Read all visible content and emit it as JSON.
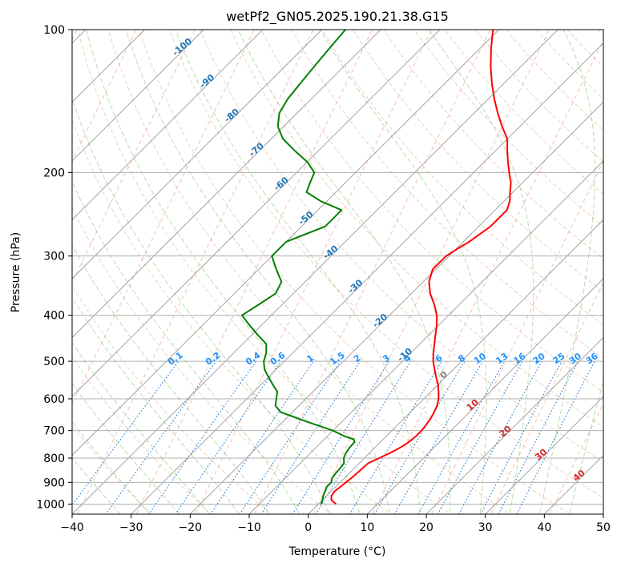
{
  "chart_data": {
    "type": "line",
    "subtype": "skew-t log-p",
    "title": "wetPf2_GN05.2025.190.21.38.G15",
    "xlabel": "Temperature (°C)",
    "ylabel": "Pressure (hPa)",
    "xlim": [
      -40,
      50
    ],
    "ylim": [
      1050,
      100
    ],
    "y_scale": "log",
    "grid": true,
    "x_ticks": [
      -40,
      -30,
      -20,
      -10,
      0,
      10,
      20,
      30,
      40,
      50
    ],
    "y_ticks": [
      1000,
      900,
      800,
      700,
      600,
      500,
      400,
      300,
      200,
      100
    ],
    "isotherm_labels": {
      "values": [
        -100,
        -90,
        -80,
        -70,
        -60,
        -50,
        -40,
        -30,
        -20,
        -10,
        0,
        10,
        20,
        30,
        40
      ],
      "colors": {
        "negative": "#1f77b4",
        "zero": "#808080",
        "positive": "#d62728"
      }
    },
    "mixing_ratio_labels": [
      "0.1",
      "0.2",
      "0.4",
      "0.6",
      "1",
      "1.5",
      "2",
      "3",
      "4",
      "6",
      "8",
      "10",
      "13",
      "16",
      "20",
      "25",
      "30",
      "36"
    ],
    "series": [
      {
        "color": "#ff0000",
        "points": [
          [
            1000,
            3
          ],
          [
            980,
            1.5
          ],
          [
            960,
            0.8
          ],
          [
            940,
            0.6
          ],
          [
            920,
            0.8
          ],
          [
            900,
            1
          ],
          [
            880,
            1.2
          ],
          [
            860,
            1.3
          ],
          [
            840,
            1.4
          ],
          [
            820,
            1.5
          ],
          [
            800,
            2.5
          ],
          [
            780,
            3.5
          ],
          [
            760,
            4.3
          ],
          [
            740,
            4.8
          ],
          [
            720,
            5
          ],
          [
            700,
            5
          ],
          [
            680,
            4.8
          ],
          [
            660,
            4.5
          ],
          [
            640,
            4
          ],
          [
            620,
            3.4
          ],
          [
            600,
            2.5
          ],
          [
            580,
            1.3
          ],
          [
            560,
            0
          ],
          [
            540,
            -1.6
          ],
          [
            520,
            -3.2
          ],
          [
            500,
            -4.8
          ],
          [
            480,
            -6.2
          ],
          [
            460,
            -7.5
          ],
          [
            440,
            -8.9
          ],
          [
            420,
            -10.3
          ],
          [
            400,
            -12
          ],
          [
            380,
            -14.2
          ],
          [
            360,
            -16.8
          ],
          [
            340,
            -19
          ],
          [
            320,
            -20.5
          ],
          [
            300,
            -20.5
          ],
          [
            290,
            -19.8
          ],
          [
            280,
            -19
          ],
          [
            260,
            -18
          ],
          [
            240,
            -18
          ],
          [
            230,
            -19
          ],
          [
            220,
            -20.5
          ],
          [
            210,
            -22
          ],
          [
            200,
            -24
          ],
          [
            190,
            -26
          ],
          [
            180,
            -28
          ],
          [
            170,
            -30
          ],
          [
            160,
            -33
          ],
          [
            150,
            -36
          ],
          [
            140,
            -39
          ],
          [
            130,
            -42
          ],
          [
            120,
            -45
          ],
          [
            110,
            -48
          ],
          [
            100,
            -51
          ]
        ]
      },
      {
        "color": "#008000",
        "points": [
          [
            1000,
            0.5
          ],
          [
            980,
            0
          ],
          [
            960,
            -0.6
          ],
          [
            940,
            -1
          ],
          [
            920,
            -1.5
          ],
          [
            900,
            -1.5
          ],
          [
            880,
            -2.1
          ],
          [
            860,
            -2.3
          ],
          [
            840,
            -2.4
          ],
          [
            820,
            -2.6
          ],
          [
            800,
            -3.5
          ],
          [
            780,
            -4
          ],
          [
            760,
            -4.3
          ],
          [
            740,
            -4.4
          ],
          [
            730,
            -5
          ],
          [
            720,
            -7
          ],
          [
            700,
            -10
          ],
          [
            680,
            -14
          ],
          [
            660,
            -18
          ],
          [
            640,
            -22
          ],
          [
            620,
            -24
          ],
          [
            600,
            -25
          ],
          [
            580,
            -26
          ],
          [
            560,
            -28
          ],
          [
            540,
            -30
          ],
          [
            520,
            -32
          ],
          [
            500,
            -33.5
          ],
          [
            480,
            -34.5
          ],
          [
            460,
            -36
          ],
          [
            440,
            -39
          ],
          [
            420,
            -42
          ],
          [
            400,
            -45
          ],
          [
            380,
            -44
          ],
          [
            360,
            -43
          ],
          [
            340,
            -44
          ],
          [
            320,
            -47
          ],
          [
            300,
            -50
          ],
          [
            280,
            -50
          ],
          [
            260,
            -46
          ],
          [
            240,
            -46
          ],
          [
            230,
            -51
          ],
          [
            220,
            -55
          ],
          [
            210,
            -56
          ],
          [
            200,
            -57
          ],
          [
            190,
            -60
          ],
          [
            180,
            -64
          ],
          [
            170,
            -68
          ],
          [
            160,
            -71
          ],
          [
            150,
            -73
          ],
          [
            140,
            -74
          ],
          [
            130,
            -74.5
          ],
          [
            120,
            -75
          ],
          [
            110,
            -75.5
          ],
          [
            100,
            -76
          ]
        ]
      }
    ]
  }
}
